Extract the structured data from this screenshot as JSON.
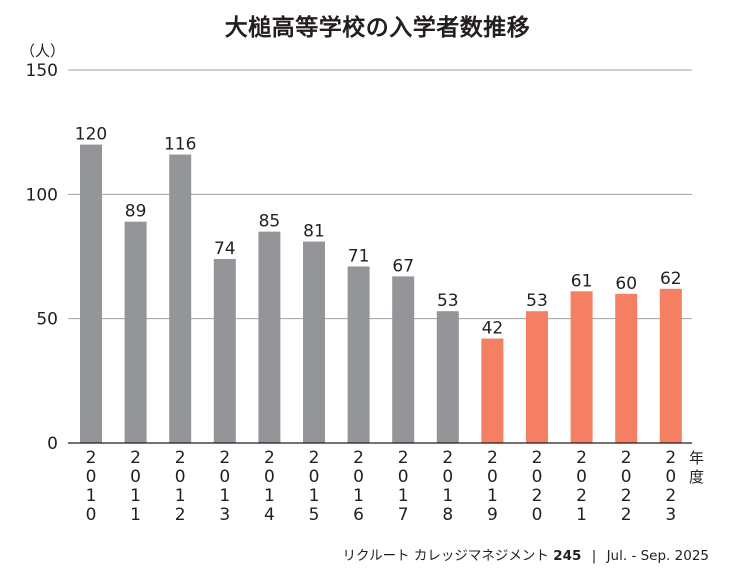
{
  "chart_data": {
    "type": "bar",
    "title": "大槌高等学校の入学者数推移",
    "ylabel": "（人）",
    "xlabel": "年度",
    "ylim": [
      0,
      150
    ],
    "yticks": [
      0,
      50,
      100,
      150
    ],
    "grid": true,
    "categories": [
      "2010",
      "2011",
      "2012",
      "2013",
      "2014",
      "2015",
      "2016",
      "2017",
      "2018",
      "2019",
      "2020",
      "2021",
      "2022",
      "2023"
    ],
    "values": [
      120,
      89,
      116,
      74,
      85,
      81,
      71,
      67,
      53,
      42,
      53,
      61,
      60,
      62
    ],
    "colors": {
      "before_2019": "#939598",
      "from_2019": "#f47f63",
      "gridline": "#9d9fa2",
      "axis": "#231f20"
    },
    "highlight_from_index": 9
  },
  "footer": {
    "publication": "リクルート カレッジマネジメント",
    "issue": "245",
    "divider": "|",
    "date": "Jul. - Sep. 2025"
  }
}
